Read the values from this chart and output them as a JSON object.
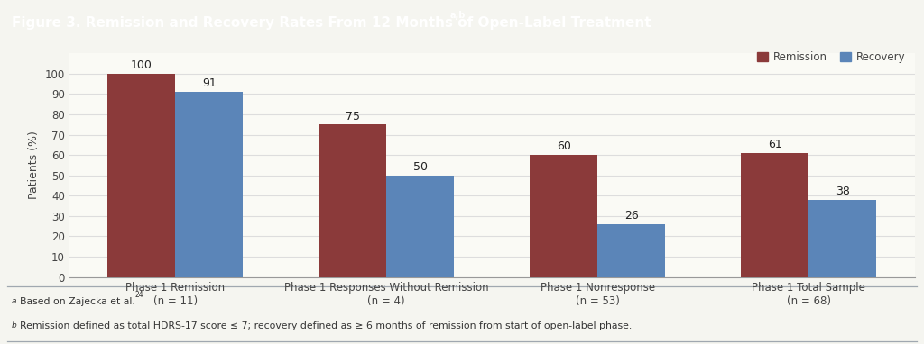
{
  "title": "Figure 3. Remission and Recovery Rates From 12 Months of Open-Label Treatment",
  "title_superscript": "a,b",
  "title_bg_color": "#1b4f72",
  "title_text_color": "#ffffff",
  "ylabel": "Patients (%)",
  "ylim": [
    0,
    110
  ],
  "yticks": [
    0,
    10,
    20,
    30,
    40,
    50,
    60,
    70,
    80,
    90,
    100
  ],
  "categories": [
    "Phase 1 Remission\n(n = 11)",
    "Phase 1 Responses Without Remission\n(n = 4)",
    "Phase 1 Nonresponse\n(n = 53)",
    "Phase 1 Total Sample\n(n = 68)"
  ],
  "remission_values": [
    100,
    75,
    60,
    61
  ],
  "recovery_values": [
    91,
    50,
    26,
    38
  ],
  "remission_color": "#8b3a3a",
  "recovery_color": "#5b85b8",
  "bar_width": 0.32,
  "background_color": "#f5f5f0",
  "plot_bg_color": "#fafaf5",
  "footnote1": "aBased on Zajecka et al.24",
  "footnote2": "bRemission defined as total HDRS-17 score ≤ 7; recovery defined as ≥ 6 months of remission from start of open-label phase.",
  "legend_labels": [
    "Remission",
    "Recovery"
  ],
  "grid_color": "#dddddd",
  "value_fontsize": 9,
  "axis_fontsize": 9,
  "tick_fontsize": 8.5,
  "title_fontsize": 11,
  "footnote_fontsize": 7.8,
  "separator_color": "#a0a8b0"
}
